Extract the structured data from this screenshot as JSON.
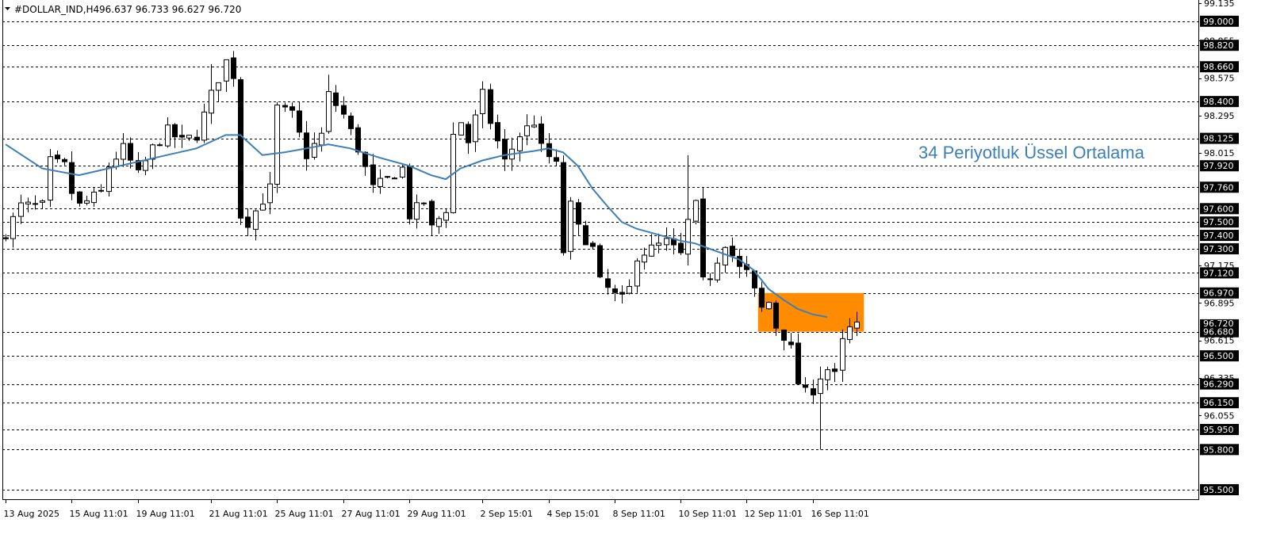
{
  "header": {
    "symbol": "#DOLLAR_IND,H4",
    "ohlc": "96.637 96.733 96.627 96.720",
    "menu_icon": "triangle-down-icon"
  },
  "annotation": {
    "text": "34 Periyotluk Üssel Ortalama",
    "color": "#3d7fb8"
  },
  "colors": {
    "background": "#ffffff",
    "bull_body": "#ffffff",
    "bear_body": "#000000",
    "wick": "#000000",
    "ema": "#3d7fb8",
    "zone": "#ff8c00",
    "grid": "#000000"
  },
  "chart_data": {
    "type": "candlestick",
    "timeframe": "H4",
    "ylim": [
      95.4,
      99.135
    ],
    "bars": 150,
    "y_ticks": [
      "99.135",
      "98.855",
      "98.575",
      "98.295",
      "98.015",
      "97.175",
      "96.895",
      "96.615",
      "96.335",
      "96.055"
    ],
    "levels": [
      "99.000",
      "98.820",
      "98.660",
      "98.400",
      "98.125",
      "97.920",
      "97.760",
      "97.600",
      "97.500",
      "97.400",
      "97.300",
      "97.120",
      "96.970",
      "96.680",
      "96.500",
      "96.290",
      "96.150",
      "95.950",
      "95.800",
      "95.500"
    ],
    "current_price": "96.720",
    "x_labels": [
      {
        "bar": 0,
        "label": "13 Aug 2025"
      },
      {
        "bar": 9,
        "label": "15 Aug 11:01"
      },
      {
        "bar": 18,
        "label": "19 Aug 11:01"
      },
      {
        "bar": 28,
        "label": "21 Aug 11:01"
      },
      {
        "bar": 37,
        "label": "25 Aug 11:01"
      },
      {
        "bar": 46,
        "label": "27 Aug 11:01"
      },
      {
        "bar": 55,
        "label": "29 Aug 11:01"
      },
      {
        "bar": 65,
        "label": "2 Sep 15:01"
      },
      {
        "bar": 74,
        "label": "4 Sep 15:01"
      },
      {
        "bar": 83,
        "label": "8 Sep 11:01"
      },
      {
        "bar": 92,
        "label": "10 Sep 11:01"
      },
      {
        "bar": 101,
        "label": "12 Sep 11:01"
      },
      {
        "bar": 110,
        "label": "16 Sep 11:01"
      }
    ],
    "close_path": [
      [
        0,
        97.42
      ],
      [
        2,
        97.62
      ],
      [
        5,
        97.62
      ],
      [
        6,
        97.95
      ],
      [
        8,
        97.92
      ],
      [
        9,
        97.72
      ],
      [
        10,
        97.62
      ],
      [
        13,
        97.72
      ],
      [
        14,
        97.92
      ],
      [
        16,
        98.05
      ],
      [
        18,
        97.85
      ],
      [
        20,
        98.05
      ],
      [
        22,
        98.18
      ],
      [
        24,
        98.1
      ],
      [
        26,
        98.15
      ],
      [
        28,
        98.45
      ],
      [
        30,
        98.7
      ],
      [
        31,
        98.6
      ],
      [
        32,
        97.55
      ],
      [
        33,
        97.5
      ],
      [
        36,
        97.75
      ],
      [
        37,
        98.35
      ],
      [
        39,
        98.3
      ],
      [
        41,
        98.0
      ],
      [
        43,
        98.15
      ],
      [
        44,
        98.45
      ],
      [
        46,
        98.3
      ],
      [
        48,
        98.05
      ],
      [
        50,
        97.75
      ],
      [
        52,
        97.82
      ],
      [
        54,
        97.9
      ],
      [
        55,
        97.55
      ],
      [
        57,
        97.65
      ],
      [
        58,
        97.45
      ],
      [
        60,
        97.6
      ],
      [
        61,
        98.15
      ],
      [
        62,
        98.25
      ],
      [
        63,
        98.1
      ],
      [
        65,
        98.45
      ],
      [
        66,
        98.25
      ],
      [
        68,
        97.95
      ],
      [
        70,
        98.15
      ],
      [
        72,
        98.25
      ],
      [
        73,
        98.05
      ],
      [
        75,
        97.92
      ],
      [
        76,
        97.28
      ],
      [
        77,
        97.62
      ],
      [
        78,
        97.45
      ],
      [
        80,
        97.3
      ],
      [
        81,
        97.05
      ],
      [
        83,
        96.95
      ],
      [
        84,
        96.92
      ],
      [
        85,
        97.0
      ],
      [
        86,
        97.25
      ],
      [
        88,
        97.3
      ],
      [
        90,
        97.35
      ],
      [
        92,
        97.25
      ],
      [
        93,
        97.5
      ],
      [
        94,
        97.62
      ],
      [
        95,
        97.05
      ],
      [
        96,
        97.1
      ],
      [
        98,
        97.35
      ],
      [
        99,
        97.25
      ],
      [
        100,
        97.15
      ],
      [
        101,
        97.12
      ],
      [
        102,
        96.98
      ],
      [
        103,
        96.85
      ],
      [
        104,
        96.9
      ],
      [
        105,
        96.72
      ],
      [
        106,
        96.65
      ],
      [
        107,
        96.55
      ],
      [
        108,
        96.3
      ],
      [
        109,
        96.22
      ],
      [
        110,
        96.25
      ],
      [
        111,
        96.35
      ],
      [
        112,
        96.4
      ],
      [
        113,
        96.35
      ],
      [
        114,
        96.6
      ],
      [
        115,
        96.7
      ],
      [
        116,
        96.72
      ]
    ],
    "ema_path": [
      [
        0,
        98.08
      ],
      [
        5,
        97.9
      ],
      [
        10,
        97.85
      ],
      [
        14,
        97.9
      ],
      [
        18,
        97.95
      ],
      [
        22,
        98.0
      ],
      [
        26,
        98.05
      ],
      [
        30,
        98.15
      ],
      [
        32,
        98.15
      ],
      [
        35,
        98.0
      ],
      [
        38,
        98.02
      ],
      [
        41,
        98.05
      ],
      [
        44,
        98.08
      ],
      [
        47,
        98.05
      ],
      [
        51,
        97.98
      ],
      [
        55,
        97.92
      ],
      [
        58,
        97.85
      ],
      [
        60,
        97.82
      ],
      [
        62,
        97.9
      ],
      [
        65,
        97.96
      ],
      [
        68,
        98.0
      ],
      [
        72,
        98.03
      ],
      [
        74,
        98.05
      ],
      [
        76,
        98.02
      ],
      [
        78,
        97.92
      ],
      [
        80,
        97.75
      ],
      [
        82,
        97.62
      ],
      [
        84,
        97.5
      ],
      [
        86,
        97.45
      ],
      [
        88,
        97.42
      ],
      [
        90,
        97.39
      ],
      [
        92,
        97.36
      ],
      [
        94,
        97.34
      ],
      [
        96,
        97.3
      ],
      [
        98,
        97.26
      ],
      [
        100,
        97.22
      ],
      [
        102,
        97.14
      ],
      [
        104,
        97.0
      ],
      [
        106,
        96.92
      ],
      [
        108,
        96.85
      ],
      [
        110,
        96.81
      ],
      [
        112,
        96.79
      ]
    ],
    "special_candles": [
      {
        "bar": 93,
        "high": 98.0,
        "low": 97.25
      },
      {
        "bar": 111,
        "high": 96.42,
        "low": 95.8
      },
      {
        "bar": 28,
        "high": 98.68,
        "low": 98.35
      },
      {
        "bar": 44,
        "high": 98.6,
        "low": 98.2
      },
      {
        "bar": 65,
        "high": 98.55,
        "low": 98.2
      }
    ],
    "zone": {
      "x_start_bar": 103,
      "x_end_bar": 117,
      "y_top": 96.97,
      "y_bottom": 96.68,
      "color": "#ff8c00"
    }
  }
}
